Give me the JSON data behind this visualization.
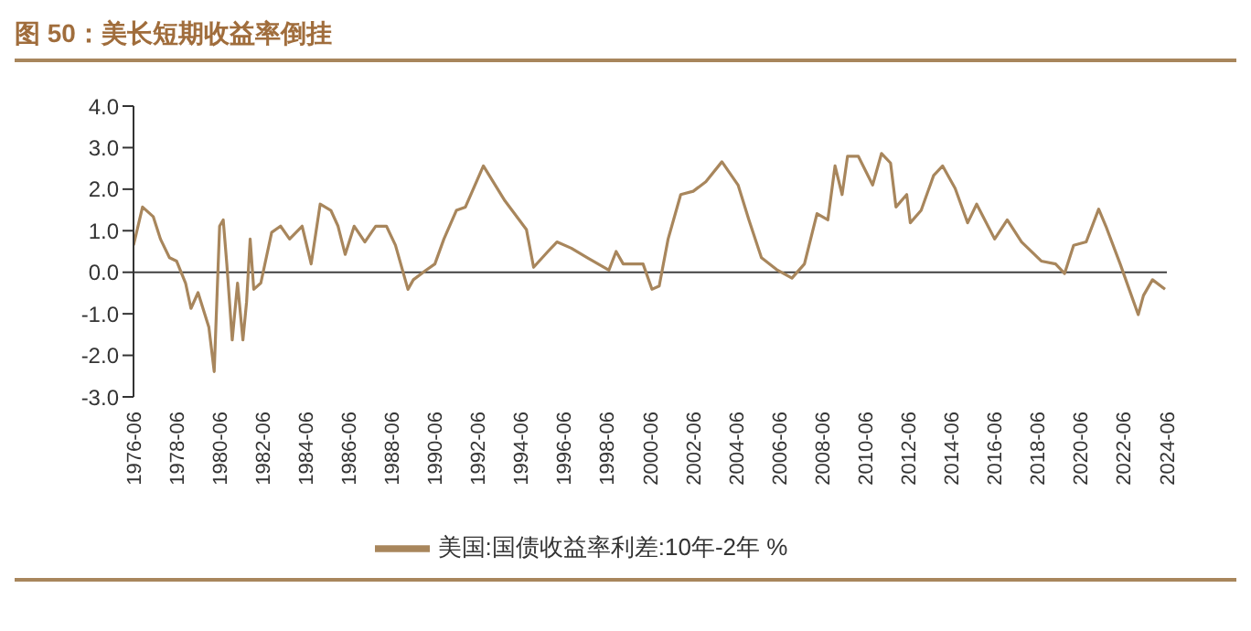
{
  "chart_data": {
    "type": "line",
    "title": "图 50：美长短期收益率倒挂",
    "x": [
      "1976-06",
      "1976-11",
      "1977-05",
      "1977-09",
      "1978-02",
      "1978-06",
      "1978-11",
      "1979-02",
      "1979-06",
      "1979-12",
      "1980-03",
      "1980-06",
      "1980-08",
      "1980-10",
      "1981-01",
      "1981-04",
      "1981-07",
      "1981-09",
      "1981-11",
      "1982-01",
      "1982-05",
      "1982-11",
      "1983-04",
      "1983-09",
      "1984-04",
      "1984-09",
      "1985-02",
      "1985-08",
      "1985-12",
      "1986-04",
      "1986-09",
      "1987-03",
      "1987-09",
      "1988-03",
      "1988-08",
      "1989-03",
      "1989-06",
      "1990-01",
      "1990-06",
      "1990-11",
      "1991-06",
      "1991-11",
      "1992-09",
      "1993-09",
      "1994-09",
      "1995-01",
      "1995-09",
      "1996-02",
      "1996-10",
      "1997-07",
      "1998-07",
      "1998-11",
      "1999-03",
      "2000-02",
      "2000-07",
      "2000-11",
      "2001-04",
      "2001-11",
      "2002-06",
      "2003-01",
      "2003-10",
      "2004-07",
      "2005-01",
      "2005-08",
      "2006-05",
      "2007-01",
      "2007-08",
      "2008-03",
      "2008-09",
      "2009-01",
      "2009-05",
      "2009-08",
      "2010-02",
      "2010-10",
      "2011-03",
      "2011-08",
      "2011-11",
      "2012-05",
      "2012-07",
      "2013-01",
      "2013-08",
      "2014-01",
      "2014-08",
      "2015-03",
      "2015-08",
      "2016-06",
      "2017-01",
      "2017-09",
      "2018-08",
      "2019-04",
      "2019-09",
      "2020-02",
      "2020-09",
      "2021-04",
      "2021-08",
      "2022-04",
      "2022-09",
      "2023-02",
      "2023-05",
      "2023-10",
      "2024-05"
    ],
    "series": [
      {
        "name": "美国:国债收益率利差:10年-2年 %",
        "color": "#a8865c",
        "values": [
          0.65,
          1.57,
          1.34,
          0.8,
          0.35,
          0.27,
          -0.26,
          -0.87,
          -0.49,
          -1.32,
          -2.39,
          1.11,
          1.26,
          0.2,
          -1.63,
          -0.26,
          -1.63,
          -0.72,
          0.8,
          -0.41,
          -0.26,
          0.96,
          1.11,
          0.8,
          1.11,
          0.2,
          1.64,
          1.49,
          1.11,
          0.43,
          1.11,
          0.73,
          1.11,
          1.11,
          0.65,
          -0.41,
          -0.18,
          0.05,
          0.2,
          0.8,
          1.49,
          1.57,
          2.56,
          1.72,
          1.03,
          0.12,
          0.5,
          0.73,
          0.58,
          0.35,
          0.05,
          0.5,
          0.2,
          0.2,
          -0.41,
          -0.33,
          0.8,
          1.87,
          1.95,
          2.18,
          2.66,
          2.1,
          1.26,
          0.35,
          0.05,
          -0.14,
          0.2,
          1.41,
          1.26,
          2.56,
          1.87,
          2.79,
          2.79,
          2.1,
          2.86,
          2.63,
          1.57,
          1.87,
          1.19,
          1.49,
          2.33,
          2.56,
          2.02,
          1.19,
          1.64,
          0.8,
          1.26,
          0.73,
          0.27,
          0.2,
          -0.03,
          0.65,
          0.73,
          1.52,
          1.11,
          0.2,
          -0.41,
          -1.02,
          -0.56,
          -0.18,
          -0.41
        ]
      }
    ],
    "xlim": [
      "1976-06",
      "2024-06"
    ],
    "xticks": [
      "1976-06",
      "1978-06",
      "1980-06",
      "1982-06",
      "1984-06",
      "1986-06",
      "1988-06",
      "1990-06",
      "1992-06",
      "1994-06",
      "1996-06",
      "1998-06",
      "2000-06",
      "2002-06",
      "2004-06",
      "2006-06",
      "2008-06",
      "2010-06",
      "2012-06",
      "2014-06",
      "2016-06",
      "2018-06",
      "2020-06",
      "2022-06",
      "2024-06"
    ],
    "ylim": [
      -3,
      4
    ],
    "yticks": [
      {
        "value": -3,
        "label": "-3.0"
      },
      {
        "value": -2,
        "label": "-2.0"
      },
      {
        "value": -1,
        "label": "-1.0"
      },
      {
        "value": 0,
        "label": "0.0"
      },
      {
        "value": 1,
        "label": "1.0"
      },
      {
        "value": 2,
        "label": "2.0"
      },
      {
        "value": 3,
        "label": "3.0"
      },
      {
        "value": 4,
        "label": "4.0"
      }
    ],
    "ref_lines": [
      {
        "axis": "y",
        "value": 0,
        "color": "#404040"
      }
    ],
    "grid": false,
    "legend": "bottom",
    "marker": "none",
    "line_style": "solid"
  }
}
